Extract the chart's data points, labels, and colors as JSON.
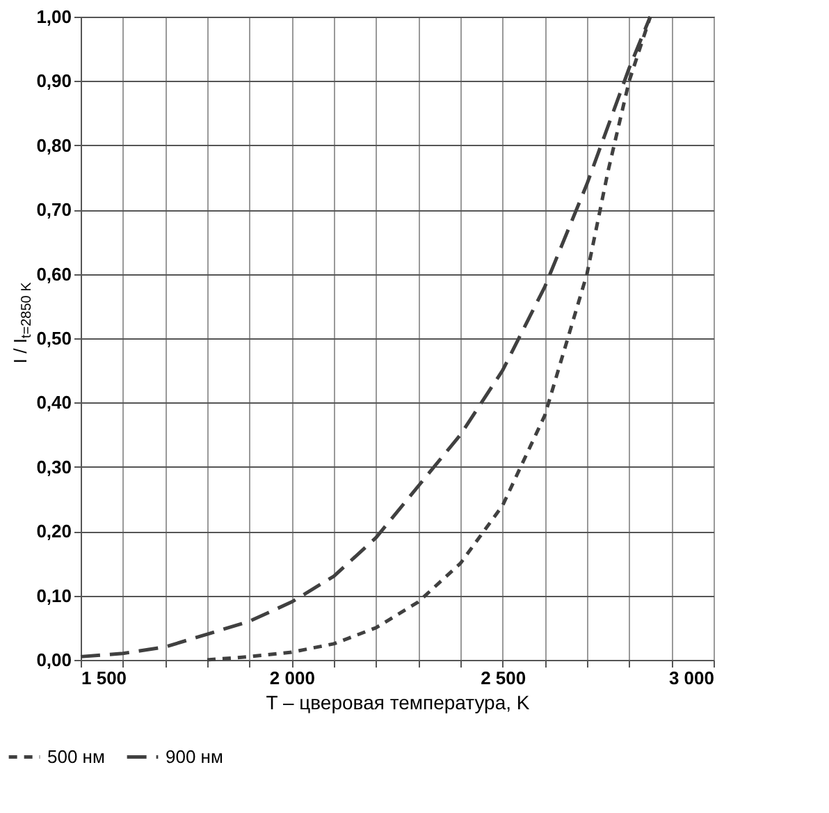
{
  "chart_data": {
    "type": "line",
    "xlabel": "T – цверовая температура, K",
    "ylabel": "I / I$_{t=2850 K}$",
    "xlim": [
      1500,
      3000
    ],
    "xticks": [
      {
        "value": 1500,
        "label": "1 500"
      },
      {
        "value": 1600,
        "label": null
      },
      {
        "value": 1700,
        "label": null
      },
      {
        "value": 1800,
        "label": null
      },
      {
        "value": 1900,
        "label": null
      },
      {
        "value": 2000,
        "label": "2 000"
      },
      {
        "value": 2100,
        "label": null
      },
      {
        "value": 2200,
        "label": null
      },
      {
        "value": 2300,
        "label": null
      },
      {
        "value": 2400,
        "label": null
      },
      {
        "value": 2500,
        "label": "2 500"
      },
      {
        "value": 2600,
        "label": null
      },
      {
        "value": 2700,
        "label": null
      },
      {
        "value": 2800,
        "label": null
      },
      {
        "value": 2900,
        "label": null
      },
      {
        "value": 3000,
        "label": "3 000"
      }
    ],
    "ylim": [
      0,
      1
    ],
    "yticks": [
      {
        "value": 0,
        "label": "0,00"
      },
      {
        "value": 0.1,
        "label": "0,10"
      },
      {
        "value": 0.2,
        "label": "0,20"
      },
      {
        "value": 0.3,
        "label": "0,30"
      },
      {
        "value": 0.4,
        "label": "0,40"
      },
      {
        "value": 0.5,
        "label": "0,50"
      },
      {
        "value": 0.6,
        "label": "0,60"
      },
      {
        "value": 0.7,
        "label": "0,70"
      },
      {
        "value": 0.8,
        "label": "0,80"
      },
      {
        "value": 0.9,
        "label": "0,90"
      },
      {
        "value": 1,
        "label": "1,00"
      }
    ],
    "grid": true,
    "legend": "bottom",
    "marker": "none",
    "series": [
      {
        "name": "500 нм",
        "color": "#404040",
        "line_style": "dotted",
        "x": [
          1800,
          1900,
          2000,
          2100,
          2200,
          2300,
          2400,
          2500,
          2600,
          2700,
          2750,
          2800,
          2850
        ],
        "values": [
          0.0,
          0.005,
          0.012,
          0.025,
          0.05,
          0.09,
          0.15,
          0.24,
          0.38,
          0.6,
          0.76,
          0.9,
          1.0
        ]
      },
      {
        "name": "900 нм",
        "color": "#404040",
        "line_style": "dashed",
        "x": [
          1500,
          1600,
          1700,
          1800,
          1900,
          2000,
          2100,
          2200,
          2300,
          2400,
          2500,
          2600,
          2700,
          2800,
          2850
        ],
        "values": [
          0.005,
          0.01,
          0.02,
          0.04,
          0.06,
          0.09,
          0.13,
          0.19,
          0.27,
          0.35,
          0.45,
          0.58,
          0.74,
          0.92,
          1.0
        ]
      }
    ]
  }
}
